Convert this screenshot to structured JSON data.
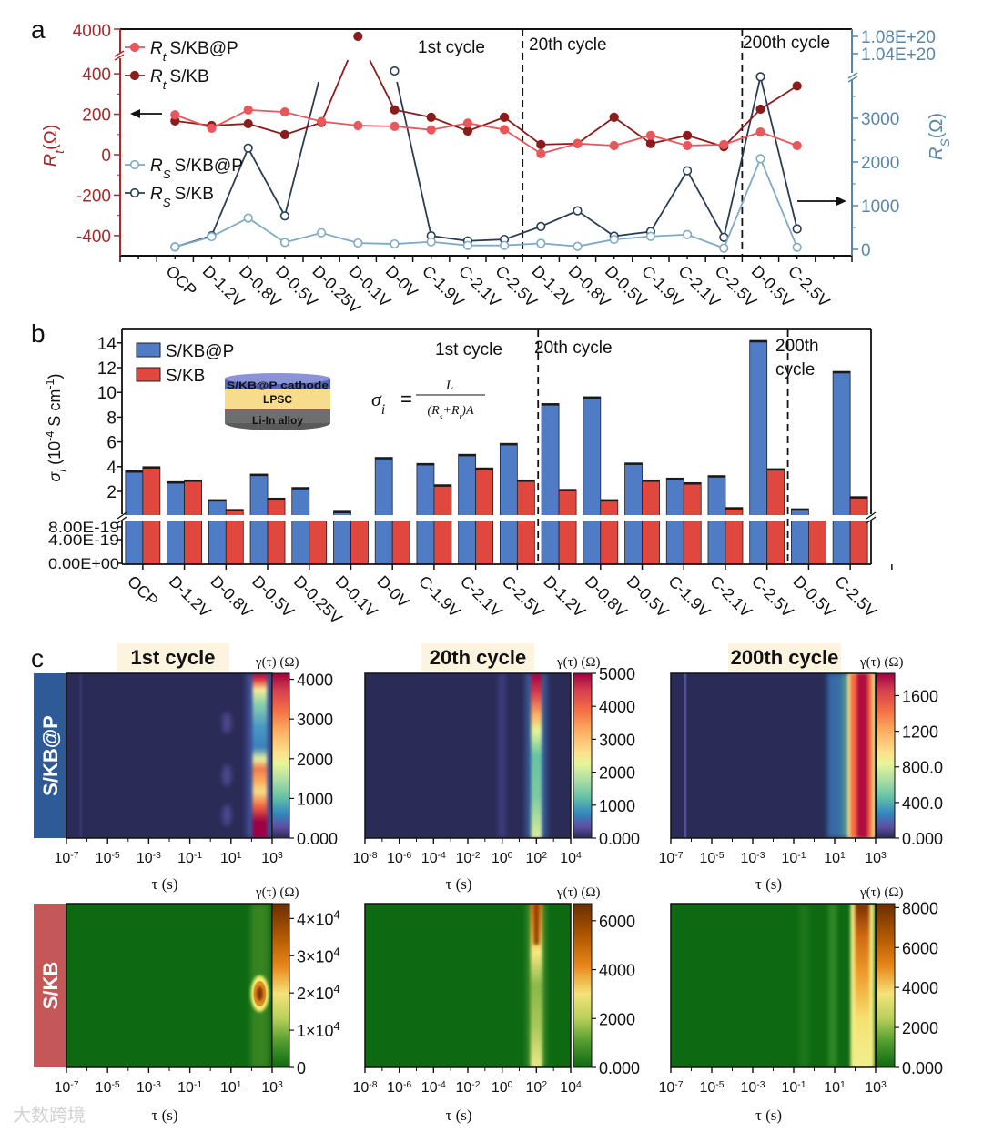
{
  "figure": {
    "panel_labels": {
      "a": "a",
      "b": "b",
      "c": "c"
    },
    "watermark": "大数跨境"
  },
  "chart_data": [
    {
      "panel": "a",
      "type": "line",
      "categories": [
        "OCP",
        "D-1.2V",
        "D-0.8V",
        "D-0.5V",
        "D-0.25V",
        "D-0.1V",
        "D-0V",
        "C-1.9V",
        "C-2.1V",
        "C-2.5V",
        "D-1.2V",
        "D-0.8V",
        "D-0.5V",
        "C-1.9V",
        "C-2.1V",
        "C-2.5V",
        "D-0.5V",
        "C-2.5V"
      ],
      "cycle_labels": [
        "1st cycle",
        "20th cycle",
        "200th cycle"
      ],
      "cycle_boundaries_after_index": [
        9,
        15
      ],
      "left_axis": {
        "label": "R",
        "label_sub": "t",
        "label_unit": "(Ω)",
        "color": "#a52a2a",
        "ticks_lower": [
          "400",
          "200",
          "0",
          "-200",
          "-400"
        ],
        "ticks_upper": [
          "4000"
        ],
        "ylim_lower": [
          -500,
          480
        ],
        "ylim_upper": [
          3400,
          4000
        ],
        "broken": true
      },
      "right_axis": {
        "label": "R",
        "label_sub": "S",
        "label_unit": "(Ω)",
        "color": "#5a86a6",
        "ticks_lower": [
          "0",
          "1000",
          "2000",
          "3000"
        ],
        "ticks_upper": [
          "1.04E+20",
          "1.08E+20"
        ],
        "ylim_lower": [
          0,
          3950
        ],
        "ylim_upper": [
          1e+20,
          1.08e+20
        ],
        "broken": true
      },
      "series": [
        {
          "sym": "R",
          "sub": "t",
          "name": "S/KB@P",
          "axis": "left",
          "color": "#e8575b",
          "marker": "filled",
          "values": [
            197,
            131,
            221,
            211,
            164,
            144,
            140,
            123,
            156,
            124,
            5,
            55,
            45,
            95,
            45,
            50,
            112,
            45
          ]
        },
        {
          "sym": "R",
          "sub": "t",
          "name": "S/KB",
          "axis": "left",
          "color": "#8b1c1c",
          "marker": "filled",
          "values": [
            167,
            144,
            153,
            99,
            159,
            3800,
            222,
            185,
            117,
            185,
            50,
            55,
            185,
            55,
            95,
            40,
            225,
            340
          ]
        },
        {
          "sym": "R",
          "sub": "S",
          "name": "S/KB@P",
          "axis": "right",
          "color": "#7eaac6",
          "marker": "open",
          "values": [
            55,
            290,
            717,
            159,
            379,
            145,
            124,
            172,
            90,
            90,
            138,
            69,
            228,
            297,
            338,
            28,
            2076,
            48
          ]
        },
        {
          "sym": "R",
          "sub": "S",
          "name": "S/KB",
          "axis": "right",
          "color": "#2a3d52",
          "marker": "open",
          "values": [
            55,
            310,
            2317,
            766,
            1e+20,
            null,
            1e+20,
            310,
            193,
            228,
            524,
            883,
            303,
            407,
            1800,
            276,
            3950,
            469
          ]
        }
      ]
    },
    {
      "panel": "b",
      "type": "bar",
      "categories": [
        "OCP",
        "D-1.2V",
        "D-0.8V",
        "D-0.5V",
        "D-0.25V",
        "D-0.1V",
        "D-0V",
        "C-1.9V",
        "C-2.1V",
        "C-2.5V",
        "D-1.2V",
        "D-0.8V",
        "D-0.5V",
        "C-1.9V",
        "C-2.1V",
        "C-2.5V",
        "D-0.5V",
        "C-2.5V"
      ],
      "cycle_labels": {
        "c1": "1st cycle",
        "c2": "20th cycle",
        "c3_line1": "200th",
        "c3_line2": "cycle"
      },
      "ylabel": {
        "sym": "σ",
        "sub": "i",
        "pre": " (10",
        "exp1": "-4",
        "mid": " S cm",
        "exp2": "-1",
        "post": ")"
      },
      "ticks_upper": [
        "14",
        "12",
        "10",
        "8",
        "6",
        "4",
        "2"
      ],
      "ticks_lower": [
        "8.00E-19",
        "4.00E-19",
        "0.00E+00"
      ],
      "ylim_upper": [
        0,
        15.1
      ],
      "ylim_lower": [
        0,
        1e-18
      ],
      "broken": true,
      "series": [
        {
          "name": "S/KB@P",
          "color": "#4f7cc4",
          "values": [
            3.67,
            2.79,
            1.34,
            3.4,
            2.32,
            0.4,
            4.75,
            4.26,
            5.0,
            5.88,
            9.1,
            9.65,
            4.3,
            3.08,
            3.28,
            14.2,
            0.6,
            11.7
          ]
        },
        {
          "name": "S/KB",
          "color": "#e0473f",
          "values": [
            4.0,
            2.93,
            0.55,
            1.46,
            0.0,
            0.0,
            0.0,
            2.54,
            3.9,
            2.93,
            2.17,
            1.34,
            2.93,
            2.71,
            0.7,
            3.84,
            0.0,
            1.58
          ]
        }
      ],
      "inset": {
        "layer_top": "S/KB@P cathode",
        "layer_mid": "LPSC",
        "layer_bottom": "Li-In alloy"
      },
      "formula": {
        "lhs": "σ",
        "lhs_sub": "i",
        "eq": "=",
        "num": "L",
        "den_a": "(R",
        "den_s": "s",
        "den_b": "+R",
        "den_t": "t",
        "den_c": ")A"
      }
    },
    {
      "panel": "c",
      "type": "heatmap",
      "row_labels": [
        "S/KB@P",
        "S/KB"
      ],
      "colorbar_label": "γ(τ) (Ω)",
      "xlabel": "τ (s)",
      "tick_base": "10",
      "maps": [
        {
          "row": "S/KB@P",
          "title": "1st cycle",
          "xticks": [
            "-7",
            "-5",
            "-3",
            "-1",
            "1",
            "3"
          ],
          "cbar_ticks": [
            "4000",
            "3000",
            "2000",
            "1000",
            "0.000"
          ],
          "cbar_range": [
            0,
            4150
          ],
          "peak_log_tau": 2.4
        },
        {
          "row": "S/KB@P",
          "title": "20th cycle",
          "xticks": [
            "-8",
            "-6",
            "-4",
            "-2",
            "0",
            "2",
            "4"
          ],
          "cbar_ticks": [
            "5000",
            "4000",
            "3000",
            "2000",
            "1000",
            "0.000"
          ],
          "cbar_range": [
            0,
            5000
          ],
          "peak_log_tau": 2.0
        },
        {
          "row": "S/KB@P",
          "title": "200th cycle",
          "xticks": [
            "-7",
            "-5",
            "-3",
            "-1",
            "1",
            "3"
          ],
          "cbar_ticks": [
            "1600",
            "1200",
            "800.0",
            "400.0",
            "0.000"
          ],
          "cbar_range": [
            0,
            1850
          ],
          "peak_log_tau": 2.3
        },
        {
          "row": "S/KB",
          "title": "",
          "xticks": [
            "-7",
            "-5",
            "-3",
            "-1",
            "1",
            "3"
          ],
          "cbar_ticks": [
            {
              "m": "4×10",
              "e": "4"
            },
            {
              "m": "3×10",
              "e": "4"
            },
            {
              "m": "2×10",
              "e": "4"
            },
            {
              "m": "1×10",
              "e": "4"
            },
            {
              "m": "0",
              "e": ""
            }
          ],
          "cbar_range": [
            0,
            44000
          ],
          "peak_log_tau": 2.4
        },
        {
          "row": "S/KB",
          "title": "",
          "xticks": [
            "-8",
            "-6",
            "-4",
            "-2",
            "0",
            "2",
            "4"
          ],
          "cbar_ticks": [
            "6000",
            "4000",
            "2000",
            "0.000"
          ],
          "cbar_range": [
            0,
            6700
          ],
          "peak_log_tau": 2.0
        },
        {
          "row": "S/KB",
          "title": "",
          "xticks": [
            "-7",
            "-5",
            "-3",
            "-1",
            "1",
            "3"
          ],
          "cbar_ticks": [
            "8000",
            "6000",
            "4000",
            "2000",
            "0.000"
          ],
          "cbar_range": [
            0,
            8200
          ],
          "peak_log_tau": 2.4
        }
      ]
    }
  ]
}
